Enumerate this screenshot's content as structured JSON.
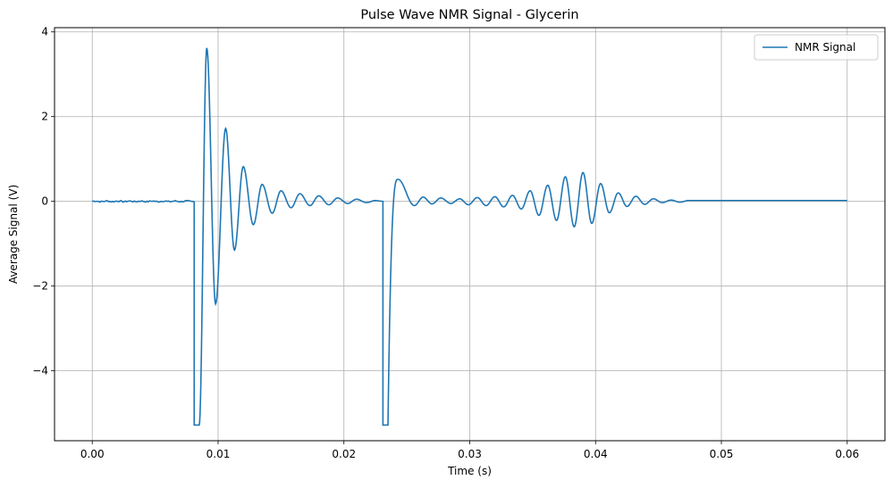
{
  "chart_data": {
    "type": "line",
    "title": "Pulse Wave NMR Signal - Glycerin",
    "xlabel": "Time (s)",
    "ylabel": "Average Signal (V)",
    "xlim": [
      -0.003,
      0.063
    ],
    "ylim": [
      -5.65,
      4.1
    ],
    "xticks": [
      0.0,
      0.01,
      0.02,
      0.03,
      0.04,
      0.05,
      0.06
    ],
    "xtick_labels": [
      "0.00",
      "0.01",
      "0.02",
      "0.03",
      "0.04",
      "0.05",
      "0.06"
    ],
    "yticks": [
      -4,
      -2,
      0,
      2,
      4
    ],
    "ytick_labels": [
      "−4",
      "−2",
      "0",
      "2",
      "4"
    ],
    "grid": true,
    "legend_position": "top-right",
    "series": [
      {
        "name": "NMR Signal",
        "color": "#1f77b4",
        "segments": [
          {
            "kind": "noise_baseline",
            "x_start": 0.0,
            "x_end": 0.0081,
            "level": 0.0,
            "amplitude": 0.015
          },
          {
            "kind": "pulse",
            "x_start": 0.0081,
            "x_end": 0.0085,
            "level": -5.28
          },
          {
            "kind": "ringdown",
            "x_start": 0.0085,
            "x_end": 0.023,
            "peaks": [
              {
                "x": 0.0091,
                "y": 3.62
              },
              {
                "x": 0.0098,
                "y": -2.42
              },
              {
                "x": 0.0106,
                "y": 1.72
              },
              {
                "x": 0.0113,
                "y": -1.15
              },
              {
                "x": 0.012,
                "y": 0.82
              },
              {
                "x": 0.0128,
                "y": -0.55
              },
              {
                "x": 0.0135,
                "y": 0.4
              },
              {
                "x": 0.0143,
                "y": -0.28
              },
              {
                "x": 0.015,
                "y": 0.25
              },
              {
                "x": 0.0158,
                "y": -0.15
              },
              {
                "x": 0.0165,
                "y": 0.18
              },
              {
                "x": 0.0173,
                "y": -0.1
              },
              {
                "x": 0.018,
                "y": 0.13
              },
              {
                "x": 0.0188,
                "y": -0.08
              },
              {
                "x": 0.0195,
                "y": 0.08
              },
              {
                "x": 0.0203,
                "y": -0.05
              },
              {
                "x": 0.021,
                "y": 0.05
              },
              {
                "x": 0.0218,
                "y": -0.03
              },
              {
                "x": 0.0225,
                "y": 0.02
              }
            ]
          },
          {
            "kind": "pulse",
            "x_start": 0.0231,
            "x_end": 0.0235,
            "level": -5.28
          },
          {
            "kind": "recovery",
            "x_start": 0.0235,
            "x_end": 0.0243,
            "from": -5.28,
            "to": 0.52
          },
          {
            "kind": "ringdown",
            "x_start": 0.0243,
            "x_end": 0.06,
            "peaks": [
              {
                "x": 0.0243,
                "y": 0.52
              },
              {
                "x": 0.0256,
                "y": -0.1
              },
              {
                "x": 0.0263,
                "y": 0.1
              },
              {
                "x": 0.027,
                "y": -0.06
              },
              {
                "x": 0.0277,
                "y": 0.08
              },
              {
                "x": 0.0285,
                "y": -0.05
              },
              {
                "x": 0.0292,
                "y": 0.06
              },
              {
                "x": 0.0299,
                "y": -0.08
              },
              {
                "x": 0.0306,
                "y": 0.09
              },
              {
                "x": 0.0313,
                "y": -0.1
              },
              {
                "x": 0.032,
                "y": 0.11
              },
              {
                "x": 0.0327,
                "y": -0.13
              },
              {
                "x": 0.0334,
                "y": 0.14
              },
              {
                "x": 0.0341,
                "y": -0.18
              },
              {
                "x": 0.0348,
                "y": 0.25
              },
              {
                "x": 0.0355,
                "y": -0.33
              },
              {
                "x": 0.0362,
                "y": 0.38
              },
              {
                "x": 0.0369,
                "y": -0.45
              },
              {
                "x": 0.0376,
                "y": 0.58
              },
              {
                "x": 0.0383,
                "y": -0.6
              },
              {
                "x": 0.039,
                "y": 0.68
              },
              {
                "x": 0.0397,
                "y": -0.52
              },
              {
                "x": 0.0404,
                "y": 0.42
              },
              {
                "x": 0.0411,
                "y": -0.27
              },
              {
                "x": 0.0418,
                "y": 0.2
              },
              {
                "x": 0.0425,
                "y": -0.12
              },
              {
                "x": 0.0432,
                "y": 0.12
              },
              {
                "x": 0.0439,
                "y": -0.07
              },
              {
                "x": 0.0446,
                "y": 0.06
              },
              {
                "x": 0.0453,
                "y": -0.03
              },
              {
                "x": 0.046,
                "y": 0.03
              },
              {
                "x": 0.0467,
                "y": -0.02
              },
              {
                "x": 0.0474,
                "y": 0.02
              },
              {
                "x": 0.06,
                "y": 0.02
              }
            ]
          }
        ]
      }
    ]
  }
}
